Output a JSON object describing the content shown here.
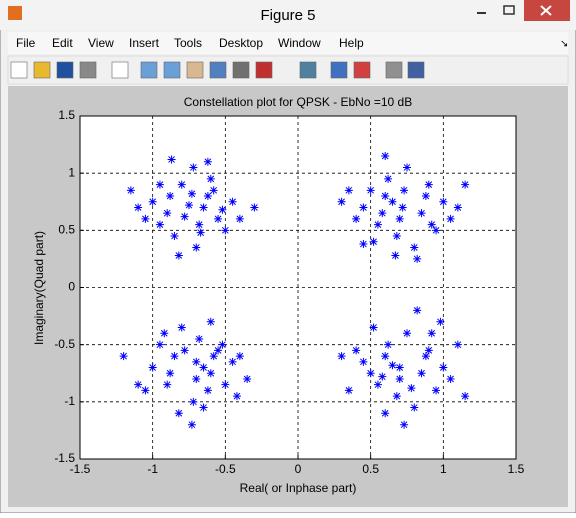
{
  "window": {
    "title": "Figure 5",
    "menu": [
      "File",
      "Edit",
      "View",
      "Insert",
      "Tools",
      "Desktop",
      "Window",
      "Help"
    ]
  },
  "chart_data": {
    "type": "scatter",
    "title": "Constellation plot for QPSK - EbNo =10 dB",
    "x_label": "Real( or Inphase part)",
    "y_label": "Imaginary(Quad part)",
    "color": "#0000ff",
    "marker": "asterisk",
    "grid": true,
    "xlim": [
      -1.5,
      1.5
    ],
    "ylim": [
      -1.5,
      1.5
    ],
    "xticks": [
      -1.5,
      -1,
      -0.5,
      0,
      0.5,
      1,
      1.5
    ],
    "yticks": [
      -1.5,
      -1,
      -0.5,
      0,
      0.5,
      1,
      1.5
    ],
    "x": [
      -0.75,
      -0.62,
      -0.9,
      -0.55,
      -0.8,
      -0.68,
      -1.0,
      -0.45,
      -0.72,
      -0.85,
      -0.6,
      -0.95,
      -0.5,
      -1.1,
      -0.7,
      -0.78,
      -0.65,
      -0.88,
      -0.58,
      -0.4,
      -1.15,
      -0.82,
      -0.62,
      -0.3,
      -0.95,
      -0.73,
      -0.52,
      -1.05,
      -0.67,
      -0.87,
      0.72,
      0.6,
      0.85,
      0.55,
      0.9,
      0.68,
      1.0,
      0.45,
      0.75,
      0.62,
      0.95,
      0.5,
      0.8,
      1.15,
      0.4,
      0.7,
      0.65,
      0.88,
      0.58,
      0.35,
      1.05,
      0.82,
      0.6,
      0.3,
      0.92,
      0.73,
      0.52,
      1.1,
      0.45,
      0.67,
      -0.7,
      -0.6,
      -0.85,
      -0.55,
      -0.9,
      -0.68,
      -1.0,
      -0.45,
      -0.72,
      -0.62,
      -0.95,
      -0.5,
      -0.8,
      -1.2,
      -0.4,
      -0.7,
      -0.65,
      -0.88,
      -0.58,
      -0.35,
      -1.05,
      -0.82,
      -0.6,
      -0.42,
      -0.92,
      -0.73,
      -0.52,
      -1.1,
      -0.65,
      -0.78,
      0.7,
      0.6,
      0.85,
      0.55,
      0.9,
      0.68,
      1.0,
      0.45,
      0.75,
      0.62,
      0.95,
      0.5,
      0.8,
      1.15,
      0.4,
      0.7,
      0.65,
      0.88,
      0.58,
      0.35,
      1.05,
      0.82,
      0.6,
      0.3,
      0.92,
      0.73,
      0.52,
      1.1,
      0.98,
      0.78
    ],
    "values": [
      0.72,
      0.8,
      0.65,
      0.6,
      0.9,
      0.55,
      0.75,
      0.75,
      1.05,
      0.45,
      0.95,
      0.9,
      0.5,
      0.7,
      0.35,
      0.62,
      0.7,
      0.8,
      0.85,
      0.6,
      0.85,
      0.28,
      1.1,
      0.7,
      0.55,
      0.82,
      0.68,
      0.6,
      0.48,
      1.12,
      0.7,
      0.8,
      0.65,
      0.55,
      0.9,
      0.45,
      0.75,
      0.7,
      1.05,
      0.95,
      0.5,
      0.85,
      0.35,
      0.9,
      0.6,
      0.6,
      0.75,
      0.8,
      0.65,
      0.85,
      0.6,
      0.25,
      1.15,
      0.75,
      0.55,
      0.85,
      0.4,
      0.7,
      0.38,
      0.28,
      -0.65,
      -0.75,
      -0.6,
      -0.55,
      -0.85,
      -0.45,
      -0.7,
      -0.65,
      -1.0,
      -0.9,
      -0.5,
      -0.85,
      -0.35,
      -0.6,
      -0.6,
      -0.8,
      -0.7,
      -0.75,
      -0.6,
      -0.8,
      -0.9,
      -1.1,
      -0.3,
      -0.95,
      -0.4,
      -1.2,
      -0.5,
      -0.85,
      -1.05,
      -0.55,
      -0.7,
      -0.6,
      -0.75,
      -0.85,
      -0.55,
      -0.95,
      -0.7,
      -0.65,
      -0.4,
      -0.5,
      -0.9,
      -0.75,
      -1.05,
      -0.95,
      -0.55,
      -0.8,
      -0.68,
      -0.6,
      -0.78,
      -0.9,
      -0.8,
      -0.2,
      -1.1,
      -0.6,
      -0.4,
      -1.2,
      -0.35,
      -0.5,
      -0.3,
      -0.88
    ]
  }
}
